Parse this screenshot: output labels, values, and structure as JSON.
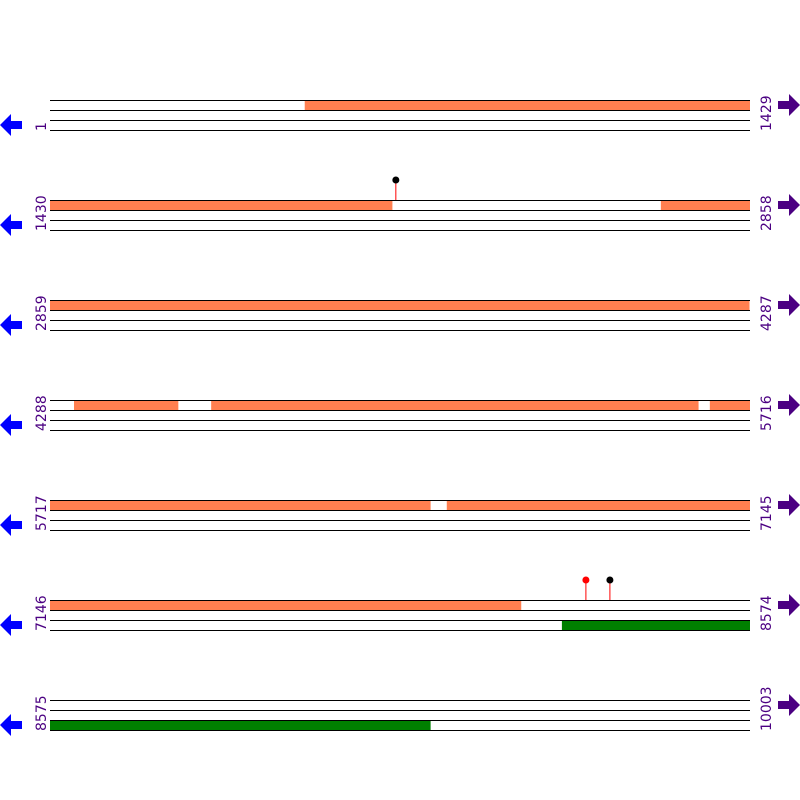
{
  "colors": {
    "top_feature": "#FF7F50",
    "bottom_feature": "#008000",
    "left_arrow": "#0000FF",
    "right_arrow": "#4B0082",
    "label": "#4B0082",
    "marker_red": "#FF0000",
    "marker_black": "#000000"
  },
  "rows": [
    {
      "start": "1",
      "end": "1429",
      "top": [
        [
          521,
          1429
        ]
      ],
      "bottom": [],
      "markers": []
    },
    {
      "start": "1430",
      "end": "2858",
      "top": [
        [
          1430,
          2128
        ],
        [
          2677,
          2858
        ]
      ],
      "bottom": [],
      "markers": [
        {
          "pos": 2136,
          "color": "black"
        }
      ]
    },
    {
      "start": "2859",
      "end": "4287",
      "top": [
        [
          2859,
          4286
        ]
      ],
      "bottom": [],
      "markers": []
    },
    {
      "start": "4288",
      "end": "5716",
      "top": [
        [
          4337,
          4549
        ],
        [
          4617,
          5611
        ],
        [
          5635,
          5716
        ]
      ],
      "bottom": [],
      "markers": []
    },
    {
      "start": "5717",
      "end": "7145",
      "top": [
        [
          5717,
          6493
        ],
        [
          6527,
          7145
        ]
      ],
      "bottom": [],
      "markers": []
    },
    {
      "start": "7146",
      "end": "8574",
      "top": [
        [
          7146,
          8107
        ]
      ],
      "bottom": [
        [
          8191,
          8574
        ]
      ],
      "markers": [
        {
          "pos": 8240,
          "color": "red"
        },
        {
          "pos": 8289,
          "color": "black"
        }
      ]
    },
    {
      "start": "8575",
      "end": "10003",
      "top": [],
      "bottom": [
        [
          8575,
          9351
        ]
      ],
      "markers": []
    }
  ]
}
